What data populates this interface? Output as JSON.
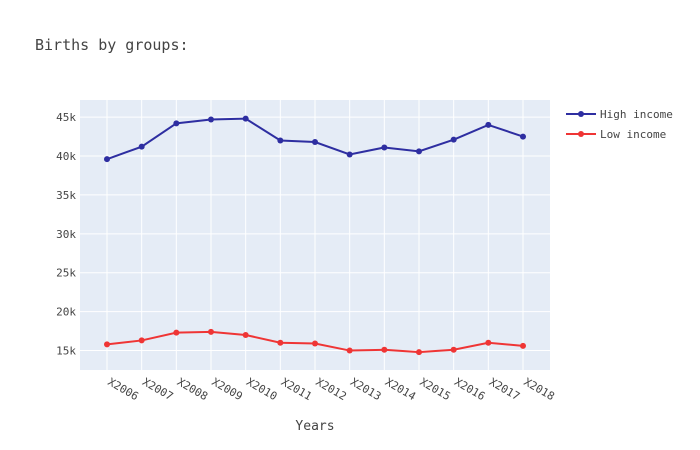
{
  "chart_data": {
    "type": "line",
    "title": "Births by groups:",
    "xlabel": "Years",
    "ylabel": "",
    "categories": [
      "X2006",
      "X2007",
      "X2008",
      "X2009",
      "X2010",
      "X2011",
      "X2012",
      "X2013",
      "X2014",
      "X2015",
      "X2016",
      "X2017",
      "X2018"
    ],
    "ylim": [
      12500,
      47200
    ],
    "yticks": [
      15000,
      20000,
      25000,
      30000,
      35000,
      40000,
      45000
    ],
    "ytick_labels": [
      "15k",
      "20k",
      "25k",
      "30k",
      "35k",
      "40k",
      "45k"
    ],
    "grid": true,
    "legend_position": "top-right",
    "series": [
      {
        "name": "High income",
        "color": "#2e2ea1",
        "values": [
          39600,
          41200,
          44200,
          44700,
          44800,
          42000,
          41800,
          40200,
          41100,
          40600,
          42100,
          44000,
          42500
        ]
      },
      {
        "name": "Low income",
        "color": "#ef3535",
        "values": [
          15800,
          16300,
          17300,
          17400,
          17000,
          16000,
          15900,
          15000,
          15100,
          14800,
          15100,
          16000,
          15600
        ]
      }
    ]
  }
}
